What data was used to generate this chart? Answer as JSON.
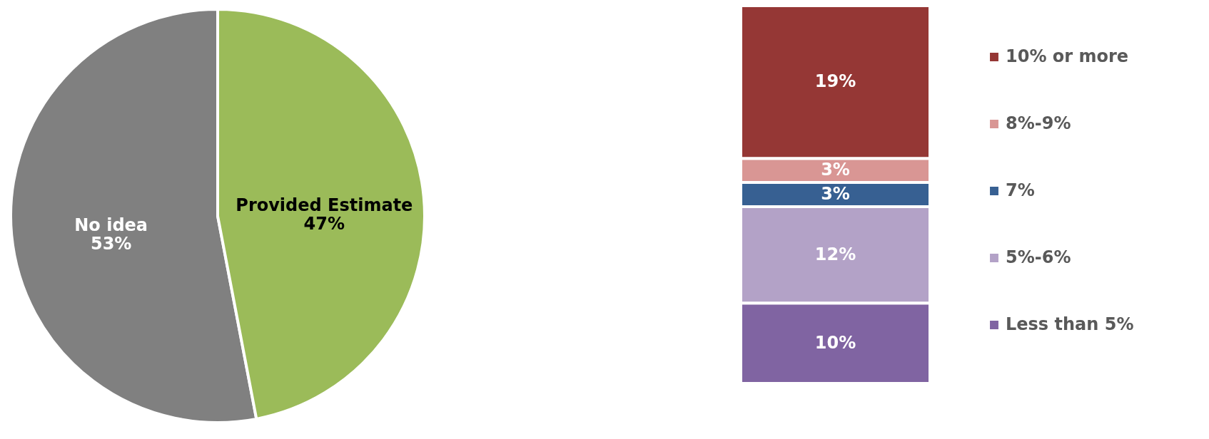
{
  "chart_data": [
    {
      "type": "pie",
      "categories": [
        "No idea",
        "Provided Estimate"
      ],
      "values": [
        53,
        47
      ],
      "colors": [
        "#808080",
        "#9bbb59"
      ],
      "value_labels": [
        "53%",
        "47%"
      ]
    },
    {
      "type": "bar",
      "stacked": true,
      "categories": [
        null
      ],
      "legend": "right",
      "series": [
        {
          "name": "Less than 5%",
          "color": "#8064a2",
          "values": [
            10
          ],
          "value_labels": [
            "10%"
          ]
        },
        {
          "name": "5%-6%",
          "color": "#b3a2c7",
          "values": [
            12
          ],
          "value_labels": [
            "12%"
          ]
        },
        {
          "name": "7%",
          "color": "#376092",
          "values": [
            3
          ],
          "value_labels": [
            "3%"
          ]
        },
        {
          "name": "8%-9%",
          "color": "#d99694",
          "values": [
            3
          ],
          "value_labels": [
            "3%"
          ]
        },
        {
          "name": "10% or more",
          "color": "#953735",
          "values": [
            19
          ],
          "value_labels": [
            "19%"
          ]
        }
      ]
    }
  ]
}
